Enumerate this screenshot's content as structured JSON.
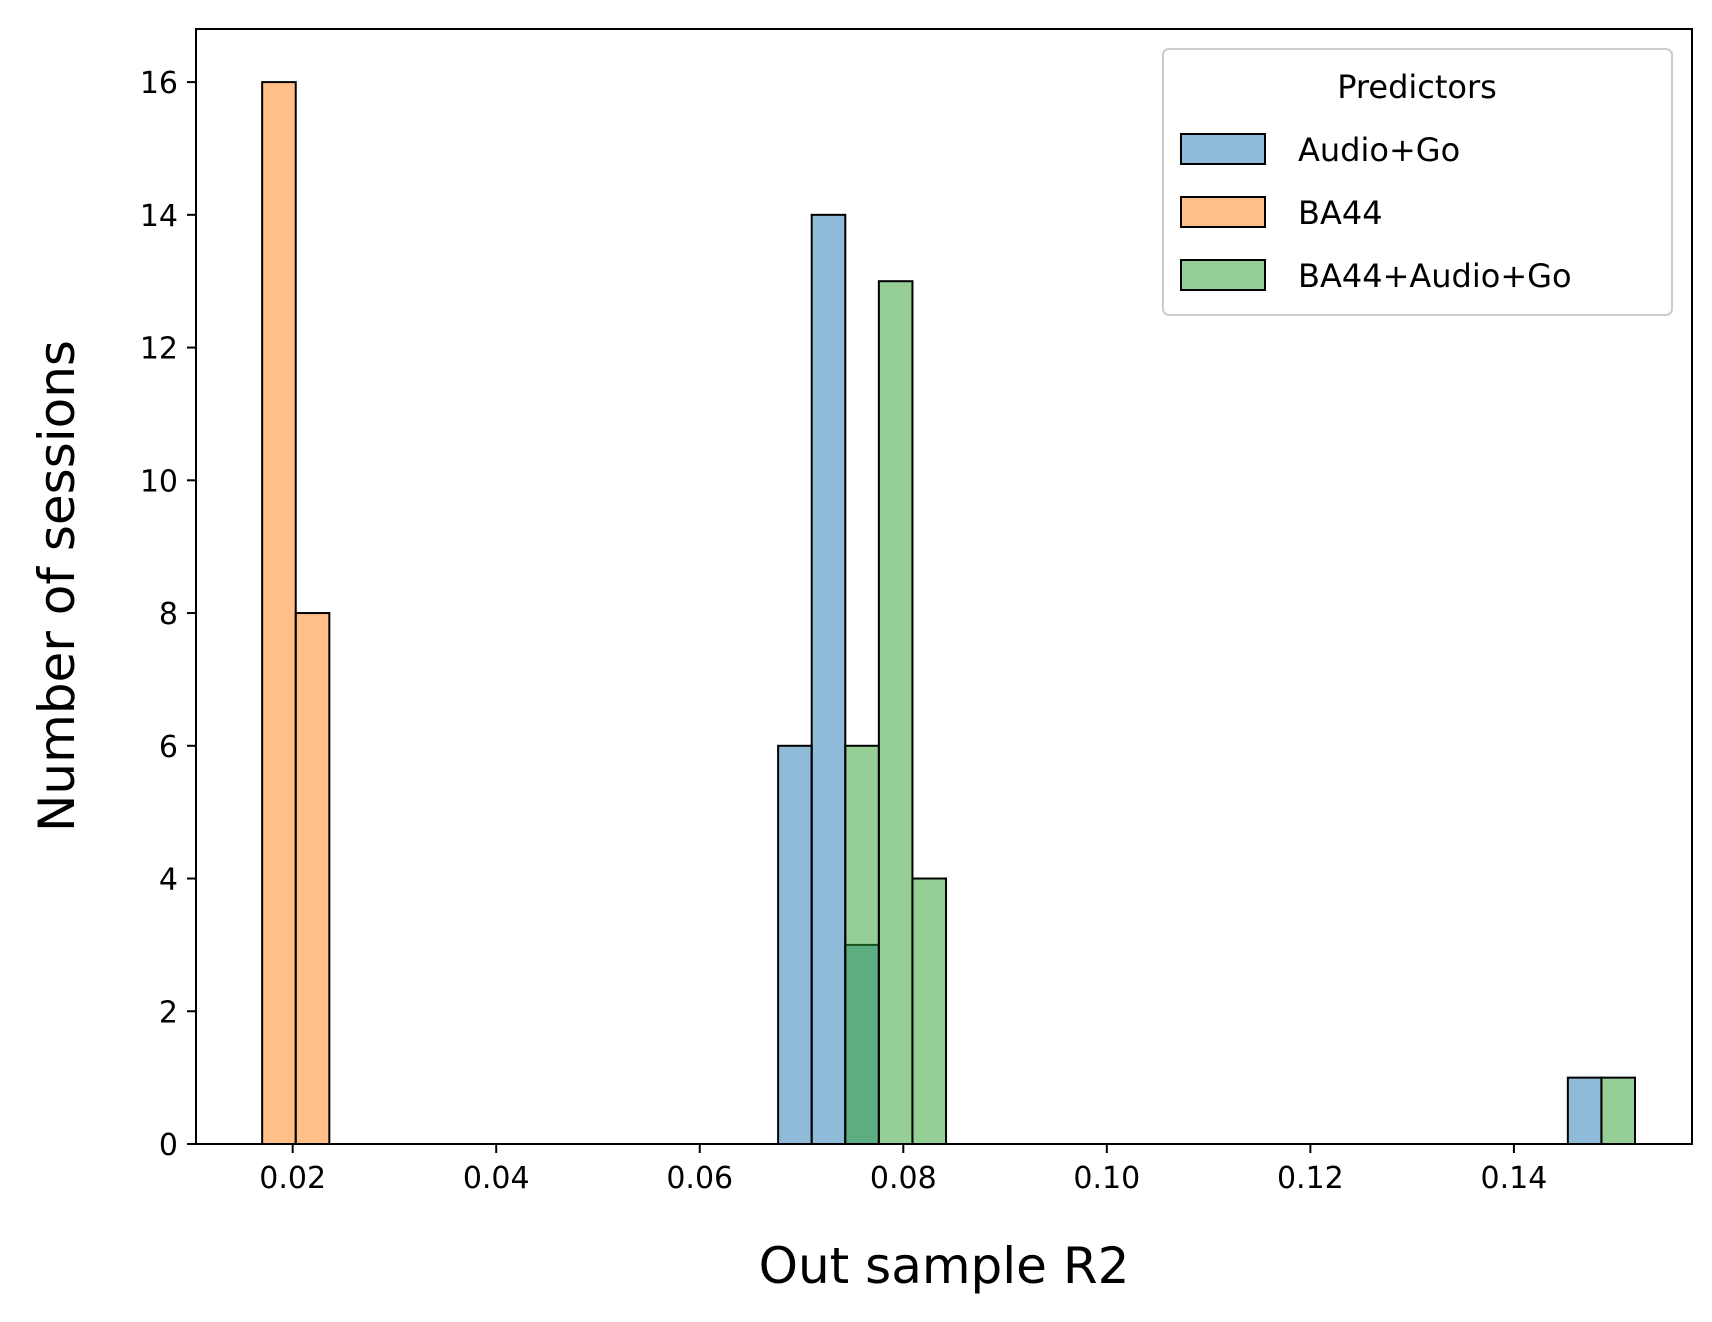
{
  "chart_data": {
    "type": "histogram",
    "xlabel": "Out sample R2",
    "ylabel": "Number of sessions",
    "xlim": [
      0.0105,
      0.1575
    ],
    "ylim": [
      0,
      16.8
    ],
    "xticks": [
      0.02,
      0.04,
      0.06,
      0.08,
      0.1,
      0.12,
      0.14
    ],
    "xtick_labels": [
      "0.02",
      "0.04",
      "0.06",
      "0.08",
      "0.10",
      "0.12",
      "0.14"
    ],
    "yticks": [
      0,
      2,
      4,
      6,
      8,
      10,
      12,
      14,
      16
    ],
    "ytick_labels": [
      "0",
      "2",
      "4",
      "6",
      "8",
      "10",
      "12",
      "14",
      "16"
    ],
    "grid": false,
    "bin_width": 0.0033,
    "legend": {
      "title": "Predictors",
      "position": "top-right"
    },
    "series": [
      {
        "name": "Audio+Go",
        "color": "#1f77b4",
        "bins": [
          {
            "x0": 0.0677,
            "x1": 0.071,
            "count": 6
          },
          {
            "x0": 0.071,
            "x1": 0.0743,
            "count": 14
          },
          {
            "x0": 0.0743,
            "x1": 0.0776,
            "count": 3
          },
          {
            "x0": 0.1453,
            "x1": 0.1486,
            "count": 1
          }
        ]
      },
      {
        "name": "BA44",
        "color": "#ff7f0e",
        "bins": [
          {
            "x0": 0.017,
            "x1": 0.0203,
            "count": 16
          },
          {
            "x0": 0.0203,
            "x1": 0.0236,
            "count": 8
          }
        ]
      },
      {
        "name": "BA44+Audio+Go",
        "color": "#2ca02c",
        "bins": [
          {
            "x0": 0.0743,
            "x1": 0.0776,
            "count": 6
          },
          {
            "x0": 0.0776,
            "x1": 0.0809,
            "count": 13
          },
          {
            "x0": 0.0809,
            "x1": 0.0842,
            "count": 4
          },
          {
            "x0": 0.1486,
            "x1": 0.1519,
            "count": 1
          }
        ]
      }
    ]
  }
}
